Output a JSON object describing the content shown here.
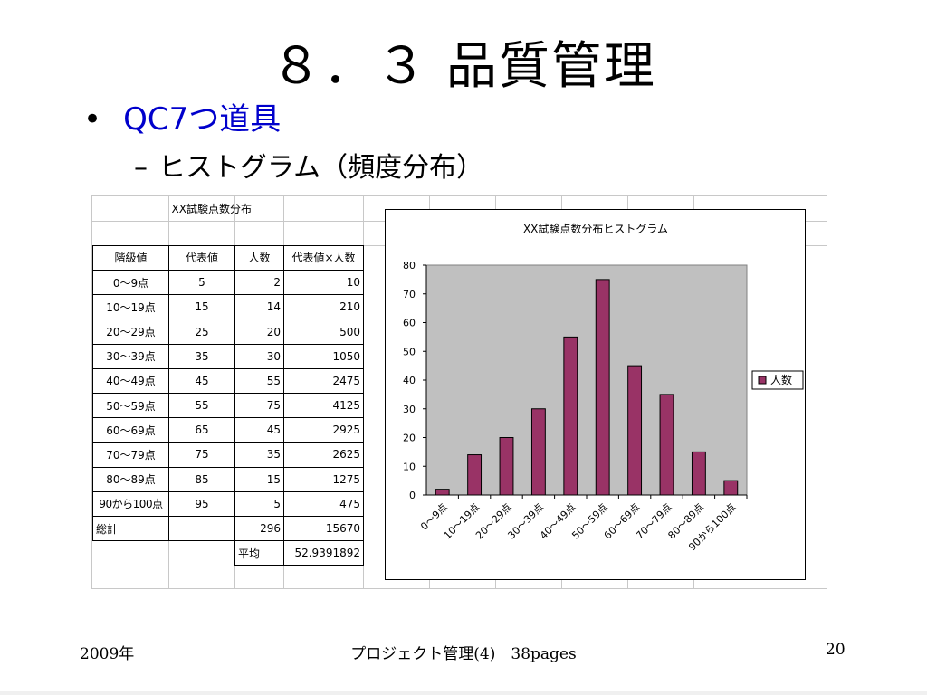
{
  "slide": {
    "title": "８．３ 品質管理",
    "bullet1": "QC7つ道具",
    "bullet1_marker": "•",
    "bullet2": "ヒストグラム（頻度分布）",
    "bullet2_marker": "–"
  },
  "sheet": {
    "table_title": "XX試験点数分布",
    "headers": [
      "階級値",
      "代表値",
      "人数",
      "代表値×人数"
    ],
    "rows": [
      [
        "0～9点",
        "5",
        "2",
        "10"
      ],
      [
        "10～19点",
        "15",
        "14",
        "210"
      ],
      [
        "20～29点",
        "25",
        "20",
        "500"
      ],
      [
        "30～39点",
        "35",
        "30",
        "1050"
      ],
      [
        "40～49点",
        "45",
        "55",
        "2475"
      ],
      [
        "50～59点",
        "55",
        "75",
        "4125"
      ],
      [
        "60～69点",
        "65",
        "45",
        "2925"
      ],
      [
        "70～79点",
        "75",
        "35",
        "2625"
      ],
      [
        "80～89点",
        "85",
        "15",
        "1275"
      ],
      [
        "90から100点",
        "95",
        "5",
        "475"
      ]
    ],
    "total_label": "総計",
    "total_count": "296",
    "total_product": "15670",
    "average_label": "平均",
    "average_value": "52.9391892"
  },
  "chart_data": {
    "type": "bar",
    "title": "XX試験点数分布ヒストグラム",
    "categories": [
      "0～9点",
      "10～19点",
      "20～29点",
      "30～39点",
      "40～49点",
      "50～59点",
      "60～69点",
      "70～79点",
      "80～89点",
      "90から100点"
    ],
    "series": [
      {
        "name": "人数",
        "values": [
          2,
          14,
          20,
          30,
          55,
          75,
          45,
          35,
          15,
          5
        ]
      }
    ],
    "ylim": [
      0,
      80
    ],
    "yticks": [
      0,
      10,
      20,
      30,
      40,
      50,
      60,
      70,
      80
    ],
    "legend_position": "right",
    "bar_color": "#993366",
    "plot_bg": "#c0c0c0"
  },
  "footer": {
    "left": "2009年",
    "center": "プロジェクト管理(4)　38pages",
    "right": "20"
  }
}
